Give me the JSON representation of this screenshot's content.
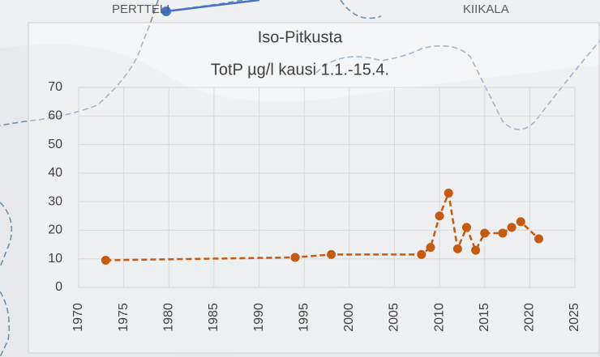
{
  "map_labels": [
    "PERTTELI",
    "KIIKALA"
  ],
  "chart_data": {
    "type": "line",
    "title": "Iso-Pitkusta",
    "subtitle": "TotP µg/l kausi 1.1.-15.4.",
    "x": [
      1973,
      1994,
      1998,
      2008,
      2009,
      2010,
      2011,
      2012,
      2013,
      2014,
      2015,
      2017,
      2018,
      2019,
      2021
    ],
    "series": [
      {
        "color": "#c55a11",
        "values": [
          9.5,
          10.5,
          11.5,
          11.5,
          14,
          25,
          33,
          13.5,
          21,
          13,
          19,
          19,
          21,
          23,
          17
        ]
      }
    ],
    "xlim": [
      1970,
      2025
    ],
    "xticks": [
      1970,
      1975,
      1980,
      1985,
      1990,
      1995,
      2000,
      2005,
      2010,
      2015,
      2020,
      2025
    ],
    "ylim": [
      0,
      70
    ],
    "yticks": [
      0,
      10,
      20,
      30,
      40,
      50,
      60,
      70
    ],
    "grid": true,
    "dashed": true
  }
}
